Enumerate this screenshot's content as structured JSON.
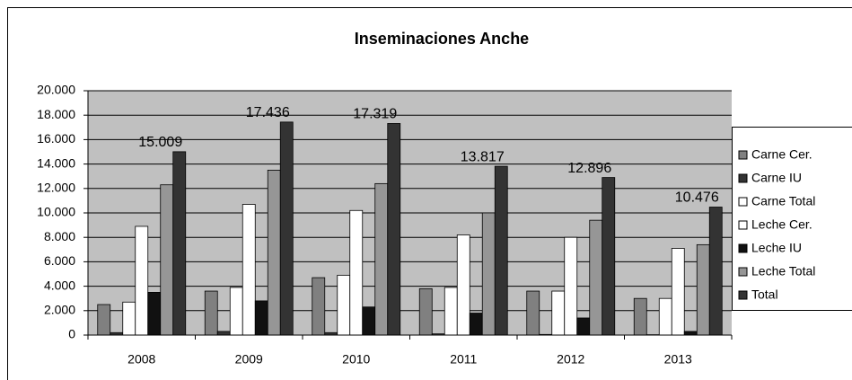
{
  "chart_data": {
    "type": "bar",
    "title": "Inseminaciones Anche",
    "categories": [
      "2008",
      "2009",
      "2010",
      "2011",
      "2012",
      "2013"
    ],
    "series": [
      {
        "name": "Carne Cer.",
        "color": "#808080",
        "values": [
          2500,
          3600,
          4700,
          3800,
          3600,
          3000
        ]
      },
      {
        "name": "Carne IU",
        "color": "#333333",
        "values": [
          200,
          300,
          200,
          100,
          50,
          30
        ]
      },
      {
        "name": "Carne Total",
        "color": "#ffffff",
        "values": [
          2700,
          3900,
          4900,
          3900,
          3600,
          3000
        ]
      },
      {
        "name": "Leche Cer.",
        "color": "#ffffff",
        "values": [
          8900,
          10700,
          10200,
          8200,
          8000,
          7100
        ]
      },
      {
        "name": "Leche IU",
        "color": "#111111",
        "values": [
          3500,
          2800,
          2300,
          1800,
          1400,
          300
        ]
      },
      {
        "name": "Leche Total",
        "color": "#969696",
        "values": [
          12300,
          13500,
          12400,
          10000,
          9400,
          7400
        ]
      },
      {
        "name": "Total",
        "color": "#333333",
        "values": [
          15009,
          17436,
          17319,
          13817,
          12896,
          10476
        ],
        "value_labels": [
          "15.009",
          "17.436",
          "17.319",
          "13.817",
          "12.896",
          "10.476"
        ]
      }
    ],
    "ylim": [
      0,
      20000
    ],
    "yticks": [
      0,
      {
        "value": 2000,
        "label": "2.000"
      },
      {
        "value": 4000,
        "label": "4.000"
      },
      {
        "value": 6000,
        "label": "6.000"
      },
      {
        "value": 8000,
        "label": "8.000"
      },
      {
        "value": 10000,
        "label": "10.000"
      },
      {
        "value": 12000,
        "label": "12.000"
      },
      {
        "value": 14000,
        "label": "14.000"
      },
      {
        "value": 16000,
        "label": "16.000"
      },
      {
        "value": 18000,
        "label": "18.000"
      },
      {
        "value": 20000,
        "label": "20.000"
      }
    ],
    "grid": true,
    "legend": "right",
    "plot_background": "#c0c0c0"
  }
}
